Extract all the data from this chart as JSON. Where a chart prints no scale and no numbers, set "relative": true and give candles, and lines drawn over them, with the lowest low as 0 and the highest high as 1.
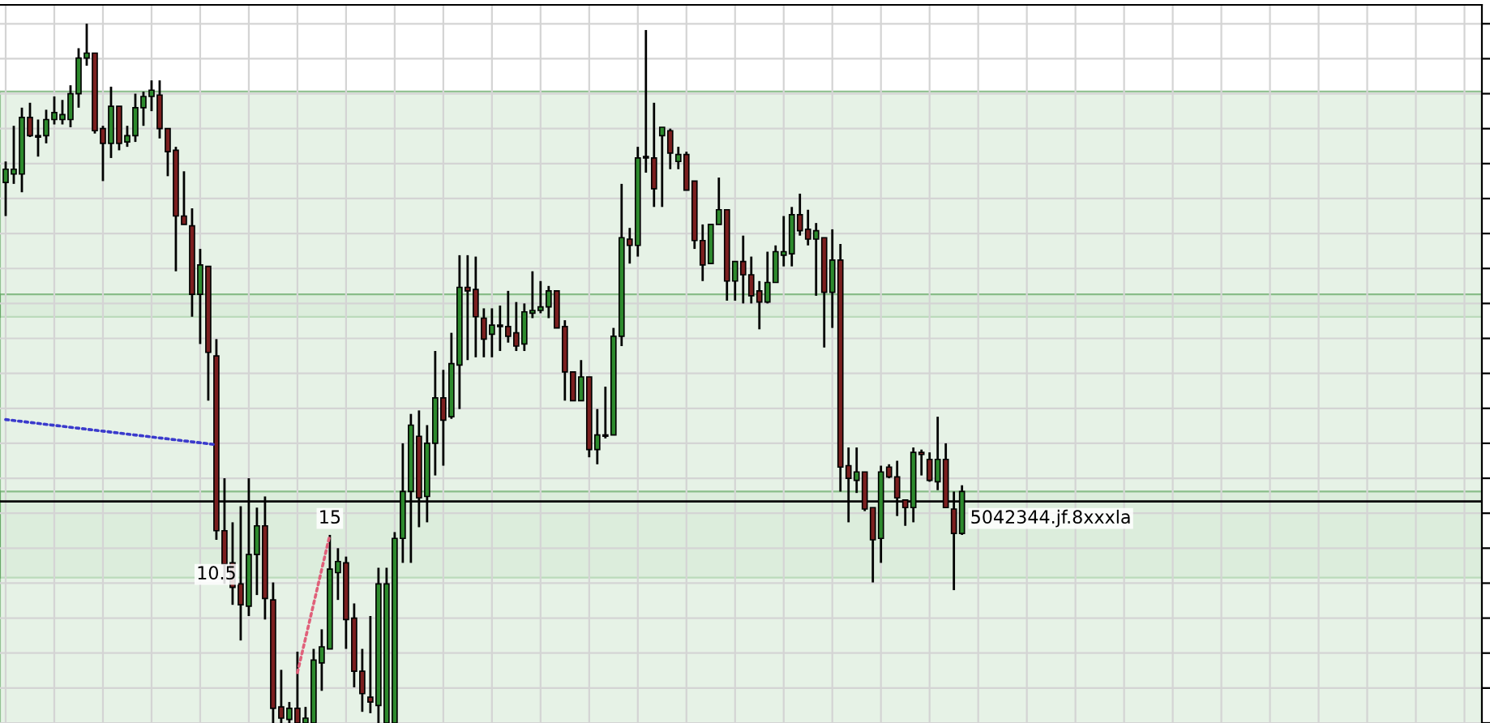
{
  "chart_data": {
    "type": "candlestick",
    "relative": true,
    "grid": true,
    "categories": [
      null,
      null,
      null,
      null,
      null,
      null,
      null,
      null,
      null,
      null,
      null,
      null,
      null,
      null,
      null,
      null,
      null,
      null,
      null,
      null,
      null,
      null,
      null,
      null,
      null,
      null,
      null,
      null,
      null,
      null,
      null,
      null,
      null,
      null,
      null,
      null,
      null,
      null,
      null,
      null,
      null,
      null,
      null,
      null,
      null,
      null,
      null,
      null,
      null,
      null,
      null,
      null,
      null,
      null,
      null,
      null,
      null,
      null,
      null,
      null,
      null,
      null,
      null,
      null,
      null,
      null,
      null,
      null,
      null,
      null,
      null,
      null,
      null,
      null,
      null,
      null,
      null,
      null,
      null,
      null,
      null,
      null,
      null,
      null,
      null,
      null,
      null,
      null,
      null,
      null,
      null,
      null,
      null,
      null,
      null,
      null,
      null,
      null,
      null,
      null,
      null,
      null,
      null,
      null,
      null,
      null,
      null,
      null,
      null,
      null,
      null,
      null,
      null,
      null,
      null,
      null,
      null,
      null,
      null,
      null,
      null,
      null,
      null,
      null,
      null,
      null,
      null,
      null,
      null,
      null,
      null,
      null,
      null,
      null,
      null,
      null,
      null,
      null,
      null,
      null,
      null,
      null,
      null,
      null,
      null,
      null,
      null,
      null,
      null,
      null,
      null,
      null,
      null,
      null,
      null,
      null,
      null,
      null,
      null,
      null,
      null,
      null,
      null,
      null,
      null,
      null,
      null,
      null,
      null,
      null,
      null,
      null,
      null,
      null,
      null,
      null,
      null,
      null,
      null,
      null,
      null,
      null,
      null
    ],
    "ohlc": [
      [
        0.773,
        0.803,
        0.725,
        0.792
      ],
      [
        0.785,
        0.854,
        0.771,
        0.792
      ],
      [
        0.785,
        0.88,
        0.759,
        0.866
      ],
      [
        0.866,
        0.887,
        0.838,
        0.84
      ],
      [
        0.84,
        0.863,
        0.81,
        0.838
      ],
      [
        0.84,
        0.877,
        0.829,
        0.863
      ],
      [
        0.863,
        0.896,
        0.856,
        0.873
      ],
      [
        0.863,
        0.891,
        0.856,
        0.87
      ],
      [
        0.863,
        0.912,
        0.852,
        0.9
      ],
      [
        0.9,
        0.965,
        0.88,
        0.951
      ],
      [
        0.951,
        1.0,
        0.94,
        0.958
      ],
      [
        0.958,
        0.958,
        0.843,
        0.847
      ],
      [
        0.85,
        0.854,
        0.775,
        0.829
      ],
      [
        0.829,
        0.91,
        0.808,
        0.882
      ],
      [
        0.882,
        0.882,
        0.819,
        0.829
      ],
      [
        0.831,
        0.854,
        0.824,
        0.84
      ],
      [
        0.84,
        0.9,
        0.831,
        0.88
      ],
      [
        0.88,
        0.903,
        0.854,
        0.896
      ],
      [
        0.896,
        0.919,
        0.875,
        0.905
      ],
      [
        0.898,
        0.919,
        0.836,
        0.85
      ],
      [
        0.85,
        0.85,
        0.782,
        0.817
      ],
      [
        0.819,
        0.824,
        0.646,
        0.725
      ],
      [
        0.725,
        0.789,
        0.713,
        0.713
      ],
      [
        0.711,
        0.736,
        0.581,
        0.613
      ],
      [
        0.613,
        0.678,
        0.542,
        0.655
      ],
      [
        0.653,
        0.653,
        0.461,
        0.53
      ],
      [
        0.525,
        0.549,
        0.262,
        0.275
      ],
      [
        0.275,
        0.35,
        0.199,
        0.227
      ],
      [
        0.229,
        0.287,
        0.169,
        0.194
      ],
      [
        0.199,
        0.31,
        0.118,
        0.169
      ],
      [
        0.167,
        0.35,
        0.153,
        0.241
      ],
      [
        0.241,
        0.308,
        0.183,
        0.282
      ],
      [
        0.282,
        0.324,
        0.148,
        0.178
      ],
      [
        0.176,
        0.201,
        0,
        0.021
      ],
      [
        0.023,
        0.076,
        0,
        0.007
      ],
      [
        0.005,
        0.03,
        0,
        0.021
      ],
      [
        0.021,
        0.102,
        0,
        0
      ],
      [
        0,
        0.023,
        0,
        0.007
      ],
      [
        0,
        0.106,
        0,
        0.09
      ],
      [
        0.086,
        0.134,
        0.046,
        0.109
      ],
      [
        0.106,
        0.269,
        0.106,
        0.22
      ],
      [
        0.215,
        0.25,
        0.176,
        0.231
      ],
      [
        0.229,
        0.238,
        0.106,
        0.148
      ],
      [
        0.15,
        0.171,
        0.051,
        0.074
      ],
      [
        0.074,
        0.106,
        0.016,
        0.042
      ],
      [
        0.037,
        0.153,
        0.014,
        0.03
      ],
      [
        0.025,
        0.222,
        0,
        0.199
      ],
      [
        0,
        0.222,
        0,
        0.199
      ],
      [
        0,
        0.273,
        0,
        0.264
      ],
      [
        0.264,
        0.4,
        0.229,
        0.331
      ],
      [
        0.331,
        0.442,
        0.229,
        0.426
      ],
      [
        0.41,
        0.447,
        0.28,
        0.322
      ],
      [
        0.324,
        0.426,
        0.287,
        0.4
      ],
      [
        0.4,
        0.532,
        0.354,
        0.465
      ],
      [
        0.465,
        0.505,
        0.368,
        0.433
      ],
      [
        0.438,
        0.558,
        0.435,
        0.514
      ],
      [
        0.512,
        0.669,
        0.449,
        0.623
      ],
      [
        0.623,
        0.669,
        0.519,
        0.618
      ],
      [
        0.62,
        0.667,
        0.523,
        0.581
      ],
      [
        0.579,
        0.593,
        0.523,
        0.549
      ],
      [
        0.556,
        0.593,
        0.523,
        0.569
      ],
      [
        0.567,
        0.597,
        0.532,
        0.569
      ],
      [
        0.567,
        0.618,
        0.544,
        0.553
      ],
      [
        0.558,
        0.602,
        0.532,
        0.539
      ],
      [
        0.542,
        0.6,
        0.532,
        0.588
      ],
      [
        0.586,
        0.646,
        0.579,
        0.59
      ],
      [
        0.59,
        0.632,
        0.586,
        0.595
      ],
      [
        0.595,
        0.625,
        0.579,
        0.618
      ],
      [
        0.618,
        0.618,
        0.565,
        0.565
      ],
      [
        0.567,
        0.576,
        0.461,
        0.502
      ],
      [
        0.502,
        0.502,
        0.461,
        0.461
      ],
      [
        0.461,
        0.519,
        0.461,
        0.495
      ],
      [
        0.495,
        0.495,
        0.38,
        0.391
      ],
      [
        0.391,
        0.449,
        0.37,
        0.412
      ],
      [
        0.412,
        0.481,
        0.407,
        0.41
      ],
      [
        0.412,
        0.565,
        0.412,
        0.553
      ],
      [
        0.553,
        0.771,
        0.539,
        0.694
      ],
      [
        0.692,
        0.708,
        0.657,
        0.683
      ],
      [
        0.683,
        0.824,
        0.667,
        0.808
      ],
      [
        0.808,
        0.991,
        0.787,
        0.81
      ],
      [
        0.808,
        0.887,
        0.738,
        0.764
      ],
      [
        0.84,
        0.852,
        0.738,
        0.852
      ],
      [
        0.847,
        0.85,
        0.792,
        0.815
      ],
      [
        0.803,
        0.824,
        0.792,
        0.813
      ],
      [
        0.813,
        0.817,
        0.762,
        0.762
      ],
      [
        0.775,
        0.775,
        0.678,
        0.69
      ],
      [
        0.69,
        0.713,
        0.632,
        0.655
      ],
      [
        0.657,
        0.713,
        0.657,
        0.713
      ],
      [
        0.713,
        0.78,
        0.713,
        0.734
      ],
      [
        0.734,
        0.734,
        0.604,
        0.632
      ],
      [
        0.632,
        0.66,
        0.604,
        0.66
      ],
      [
        0.66,
        0.697,
        0.6,
        0.641
      ],
      [
        0.641,
        0.667,
        0.6,
        0.611
      ],
      [
        0.618,
        0.632,
        0.563,
        0.602
      ],
      [
        0.602,
        0.674,
        0.6,
        0.63
      ],
      [
        0.63,
        0.683,
        0.63,
        0.674
      ],
      [
        0.669,
        0.725,
        0.653,
        0.674
      ],
      [
        0.671,
        0.738,
        0.653,
        0.727
      ],
      [
        0.727,
        0.757,
        0.697,
        0.704
      ],
      [
        0.706,
        0.734,
        0.683,
        0.692
      ],
      [
        0.692,
        0.715,
        0.611,
        0.704
      ],
      [
        0.694,
        0.694,
        0.537,
        0.616
      ],
      [
        0.616,
        0.706,
        0.565,
        0.662
      ],
      [
        0.662,
        0.685,
        0.331,
        0.366
      ],
      [
        0.368,
        0.394,
        0.287,
        0.35
      ],
      [
        0.347,
        0.394,
        0.329,
        0.359
      ],
      [
        0.359,
        0.359,
        0.303,
        0.306
      ],
      [
        0.308,
        0.308,
        0.201,
        0.262
      ],
      [
        0.264,
        0.368,
        0.229,
        0.359
      ],
      [
        0.366,
        0.37,
        0.35,
        0.352
      ],
      [
        0.352,
        0.375,
        0.296,
        0.322
      ],
      [
        0.319,
        0.319,
        0.282,
        0.308
      ],
      [
        0.308,
        0.394,
        0.287,
        0.387
      ],
      [
        0.387,
        0.391,
        0.354,
        0.384
      ],
      [
        0.377,
        0.387,
        0.345,
        0.347
      ],
      [
        0.345,
        0.438,
        0.333,
        0.377
      ],
      [
        0.377,
        0.4,
        0.308,
        0.308
      ],
      [
        0.306,
        0.331,
        0.19,
        0.271
      ],
      [
        0.271,
        0.34,
        0.269,
        0.331
      ],
      null,
      null,
      null,
      null,
      null,
      null,
      null,
      null,
      null,
      null,
      null,
      null,
      null,
      null,
      null,
      null,
      null,
      null,
      null,
      null,
      null,
      null,
      null,
      null,
      null,
      null,
      null,
      null,
      null,
      null,
      null,
      null,
      null,
      null,
      null,
      null,
      null,
      null,
      null,
      null,
      null,
      null,
      null,
      null,
      null,
      null,
      null,
      null,
      null,
      null,
      null,
      null,
      null,
      null,
      null,
      null,
      null,
      null,
      null,
      null,
      null,
      null,
      null,
      null
    ],
    "colors": [
      "#2d8a2d",
      "#2d8a2d",
      "#2d8a2d",
      "#7b1f1f",
      "#7b1f1f",
      "#2d8a2d",
      "#2d8a2d",
      "#2d8a2d",
      "#2d8a2d",
      "#2d8a2d",
      "#2d8a2d",
      "#7b1f1f",
      "#7b1f1f",
      "#2d8a2d",
      "#7b1f1f",
      "#2d8a2d",
      "#2d8a2d",
      "#2d8a2d",
      "#2d8a2d",
      "#7b1f1f",
      "#7b1f1f",
      "#7b1f1f",
      "#7b1f1f",
      "#7b1f1f",
      "#2d8a2d",
      "#7b1f1f",
      "#7b1f1f",
      "#7b1f1f",
      "#7b1f1f",
      "#7b1f1f",
      "#2d8a2d",
      "#2d8a2d",
      "#7b1f1f",
      "#7b1f1f",
      "#7b1f1f",
      "#2d8a2d",
      "#7b1f1f",
      "#2d8a2d",
      "#2d8a2d",
      "#2d8a2d",
      "#2d8a2d",
      "#2d8a2d",
      "#7b1f1f",
      "#7b1f1f",
      "#7b1f1f",
      "#7b1f1f",
      "#2d8a2d",
      "#2d8a2d",
      "#2d8a2d",
      "#2d8a2d",
      "#2d8a2d",
      "#7b1f1f",
      "#2d8a2d",
      "#2d8a2d",
      "#7b1f1f",
      "#2d8a2d",
      "#2d8a2d",
      "#7b1f1f",
      "#7b1f1f",
      "#7b1f1f",
      "#2d8a2d",
      "#2d8a2d",
      "#7b1f1f",
      "#7b1f1f",
      "#2d8a2d",
      "#2d8a2d",
      "#2d8a2d",
      "#2d8a2d",
      "#7b1f1f",
      "#7b1f1f",
      "#7b1f1f",
      "#2d8a2d",
      "#7b1f1f",
      "#2d8a2d",
      "#7b1f1f",
      "#2d8a2d",
      "#2d8a2d",
      "#7b1f1f",
      "#2d8a2d",
      "#2d8a2d",
      "#7b1f1f",
      "#2d8a2d",
      "#7b1f1f",
      "#2d8a2d",
      "#7b1f1f",
      "#7b1f1f",
      "#7b1f1f",
      "#2d8a2d",
      "#2d8a2d",
      "#7b1f1f",
      "#2d8a2d",
      "#7b1f1f",
      "#7b1f1f",
      "#7b1f1f",
      "#2d8a2d",
      "#2d8a2d",
      "#2d8a2d",
      "#2d8a2d",
      "#7b1f1f",
      "#7b1f1f",
      "#2d8a2d",
      "#7b1f1f",
      "#2d8a2d",
      "#7b1f1f",
      "#7b1f1f",
      "#2d8a2d",
      "#7b1f1f",
      "#7b1f1f",
      "#2d8a2d",
      "#7b1f1f",
      "#7b1f1f",
      "#7b1f1f",
      "#2d8a2d",
      "#7b1f1f",
      "#7b1f1f",
      "#2d8a2d",
      "#7b1f1f",
      "#7b1f1f",
      "#2d8a2d",
      null,
      null,
      null,
      null,
      null,
      null,
      null,
      null,
      null,
      null,
      null,
      null,
      null,
      null,
      null,
      null,
      null,
      null,
      null,
      null,
      null,
      null,
      null,
      null,
      null,
      null,
      null,
      null,
      null,
      null,
      null,
      null,
      null,
      null,
      null,
      null,
      null,
      null,
      null,
      null,
      null,
      null,
      null,
      null,
      null,
      null,
      null,
      null,
      null,
      null,
      null,
      null,
      null,
      null,
      null,
      null,
      null,
      null,
      null,
      null,
      null,
      null,
      null,
      null
    ],
    "series": [
      {
        "type": "line",
        "color": "#3a3acc",
        "line_style": "dotted",
        "values": [
          0.434,
          null,
          null,
          null,
          null,
          null,
          null,
          null,
          null,
          null,
          null,
          null,
          null,
          null,
          null,
          null,
          null,
          null,
          null,
          null,
          null,
          null,
          null,
          null,
          null,
          null,
          0.398,
          null,
          null,
          null,
          null,
          null,
          null,
          null,
          null,
          null,
          null,
          null,
          null,
          null,
          null,
          null,
          null,
          null,
          null,
          null,
          null,
          null,
          null,
          null,
          null,
          null,
          null,
          null,
          null,
          null,
          null,
          null,
          null,
          null,
          null,
          null,
          null,
          null,
          null,
          null,
          null,
          null,
          null,
          null,
          null,
          null,
          null,
          null,
          null,
          null,
          null,
          null,
          null,
          null,
          null,
          null,
          null,
          null,
          null,
          null,
          null,
          null,
          null,
          null,
          null,
          null,
          null,
          null,
          null,
          null,
          null,
          null,
          null,
          null,
          null,
          null,
          null,
          null,
          null,
          null,
          null,
          null,
          null,
          null,
          null,
          null,
          null,
          null,
          null,
          null,
          null,
          null,
          null,
          null,
          null,
          null,
          null,
          null,
          null,
          null,
          null,
          null,
          null,
          null,
          null,
          null,
          null,
          null,
          null,
          null,
          null,
          null,
          null,
          null,
          null,
          null,
          null,
          null,
          null,
          null,
          null,
          null,
          null,
          null,
          null,
          null,
          null,
          null,
          null,
          null,
          null,
          null,
          null,
          null,
          null,
          null,
          null,
          null,
          null,
          null,
          null,
          null,
          null,
          null,
          null,
          null,
          null,
          null,
          null,
          null,
          null,
          null,
          null,
          null,
          null,
          null,
          null
        ]
      },
      {
        "type": "line",
        "color": "#e0607a",
        "line_style": "dotted",
        "values": [
          null,
          null,
          null,
          null,
          null,
          null,
          null,
          null,
          null,
          null,
          null,
          null,
          null,
          null,
          null,
          null,
          null,
          null,
          null,
          null,
          null,
          null,
          null,
          null,
          null,
          null,
          null,
          null,
          null,
          null,
          null,
          null,
          null,
          null,
          null,
          null,
          0.072,
          null,
          null,
          null,
          0.269,
          null,
          null,
          null,
          null,
          null,
          null,
          null,
          null,
          null,
          null,
          null,
          null,
          null,
          null,
          null,
          null,
          null,
          null,
          null,
          null,
          null,
          null,
          null,
          null,
          null,
          null,
          null,
          null,
          null,
          null,
          null,
          null,
          null,
          null,
          null,
          null,
          null,
          null,
          null,
          null,
          null,
          null,
          null,
          null,
          null,
          null,
          null,
          null,
          null,
          null,
          null,
          null,
          null,
          null,
          null,
          null,
          null,
          null,
          null,
          null,
          null,
          null,
          null,
          null,
          null,
          null,
          null,
          null,
          null,
          null,
          null,
          null,
          null,
          null,
          null,
          null,
          null,
          null,
          null,
          null,
          null,
          null,
          null,
          null,
          null,
          null,
          null,
          null,
          null,
          null,
          null,
          null,
          null,
          null,
          null,
          null,
          null,
          null,
          null,
          null,
          null,
          null,
          null,
          null,
          null,
          null,
          null,
          null,
          null,
          null,
          null,
          null,
          null,
          null,
          null,
          null,
          null,
          null,
          null,
          null,
          null,
          null,
          null,
          null,
          null,
          null,
          null,
          null,
          null,
          null,
          null,
          null,
          null,
          null,
          null,
          null,
          null,
          null,
          null,
          null,
          null,
          null
        ]
      }
    ],
    "bands": [
      {
        "axis": "y",
        "from": 0.581,
        "to": 0.903,
        "color": "#d6ebd6"
      },
      {
        "axis": "y",
        "from": 0.208,
        "to": 0.613,
        "color": "#d6ebd6"
      },
      {
        "axis": "y",
        "from": 0,
        "to": 0.331,
        "color": "#d6ebd6"
      }
    ],
    "ref_lines": [
      {
        "axis": "y",
        "value": 0.317,
        "color": "#000000"
      }
    ],
    "annotations": [
      "15",
      "10.5",
      "5042344.jf.8xxxla"
    ]
  }
}
